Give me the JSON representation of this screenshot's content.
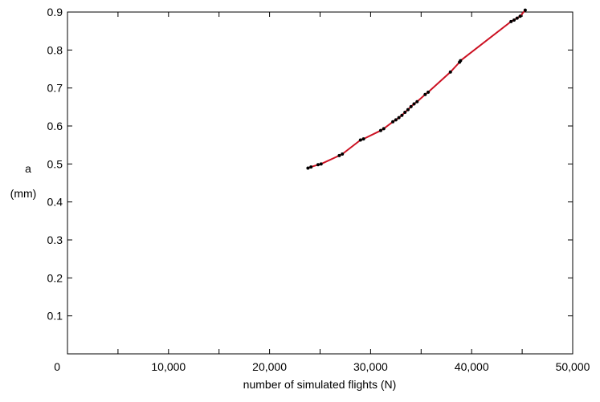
{
  "chart_data": {
    "type": "line",
    "title": "",
    "xlabel": "number of simulated flights (N)",
    "ylabel_lines": [
      "a",
      "(mm)"
    ],
    "xlim": [
      0,
      50000
    ],
    "ylim": [
      0,
      0.9
    ],
    "grid": false,
    "x_ticks": [
      0,
      5000,
      10000,
      15000,
      20000,
      25000,
      30000,
      35000,
      40000,
      45000,
      50000
    ],
    "x_tick_labels": [
      {
        "value": 0,
        "label": "0"
      },
      {
        "value": 10000,
        "label": "10,000"
      },
      {
        "value": 20000,
        "label": "20,000"
      },
      {
        "value": 30000,
        "label": "30,000"
      },
      {
        "value": 40000,
        "label": "40,000"
      },
      {
        "value": 50000,
        "label": "50,000"
      }
    ],
    "y_ticks": [
      0.1,
      0.2,
      0.3,
      0.4,
      0.5,
      0.6,
      0.7,
      0.8,
      0.9
    ],
    "y_tick_labels": [
      {
        "value": 0.1,
        "label": "0.1"
      },
      {
        "value": 0.2,
        "label": "0.2"
      },
      {
        "value": 0.3,
        "label": "0.3"
      },
      {
        "value": 0.4,
        "label": "0.4"
      },
      {
        "value": 0.5,
        "label": "0.5"
      },
      {
        "value": 0.6,
        "label": "0.6"
      },
      {
        "value": 0.7,
        "label": "0.7"
      },
      {
        "value": 0.8,
        "label": "0.8"
      },
      {
        "value": 0.9,
        "label": "0.9"
      }
    ],
    "series": [
      {
        "color": "#cc1122",
        "marker_color": "#000000",
        "x": [
          23800,
          24100,
          24800,
          25100,
          26900,
          27200,
          29000,
          29300,
          31000,
          31300,
          32200,
          32500,
          32800,
          33100,
          33400,
          33700,
          34000,
          34300,
          34600,
          35400,
          35700,
          37900,
          38800,
          38900,
          43900,
          44200,
          44500,
          44800,
          45300
        ],
        "y": [
          0.489,
          0.492,
          0.498,
          0.5,
          0.522,
          0.526,
          0.563,
          0.566,
          0.588,
          0.593,
          0.611,
          0.616,
          0.622,
          0.628,
          0.636,
          0.643,
          0.651,
          0.658,
          0.664,
          0.683,
          0.689,
          0.742,
          0.768,
          0.772,
          0.875,
          0.879,
          0.884,
          0.889,
          0.905
        ]
      }
    ]
  }
}
